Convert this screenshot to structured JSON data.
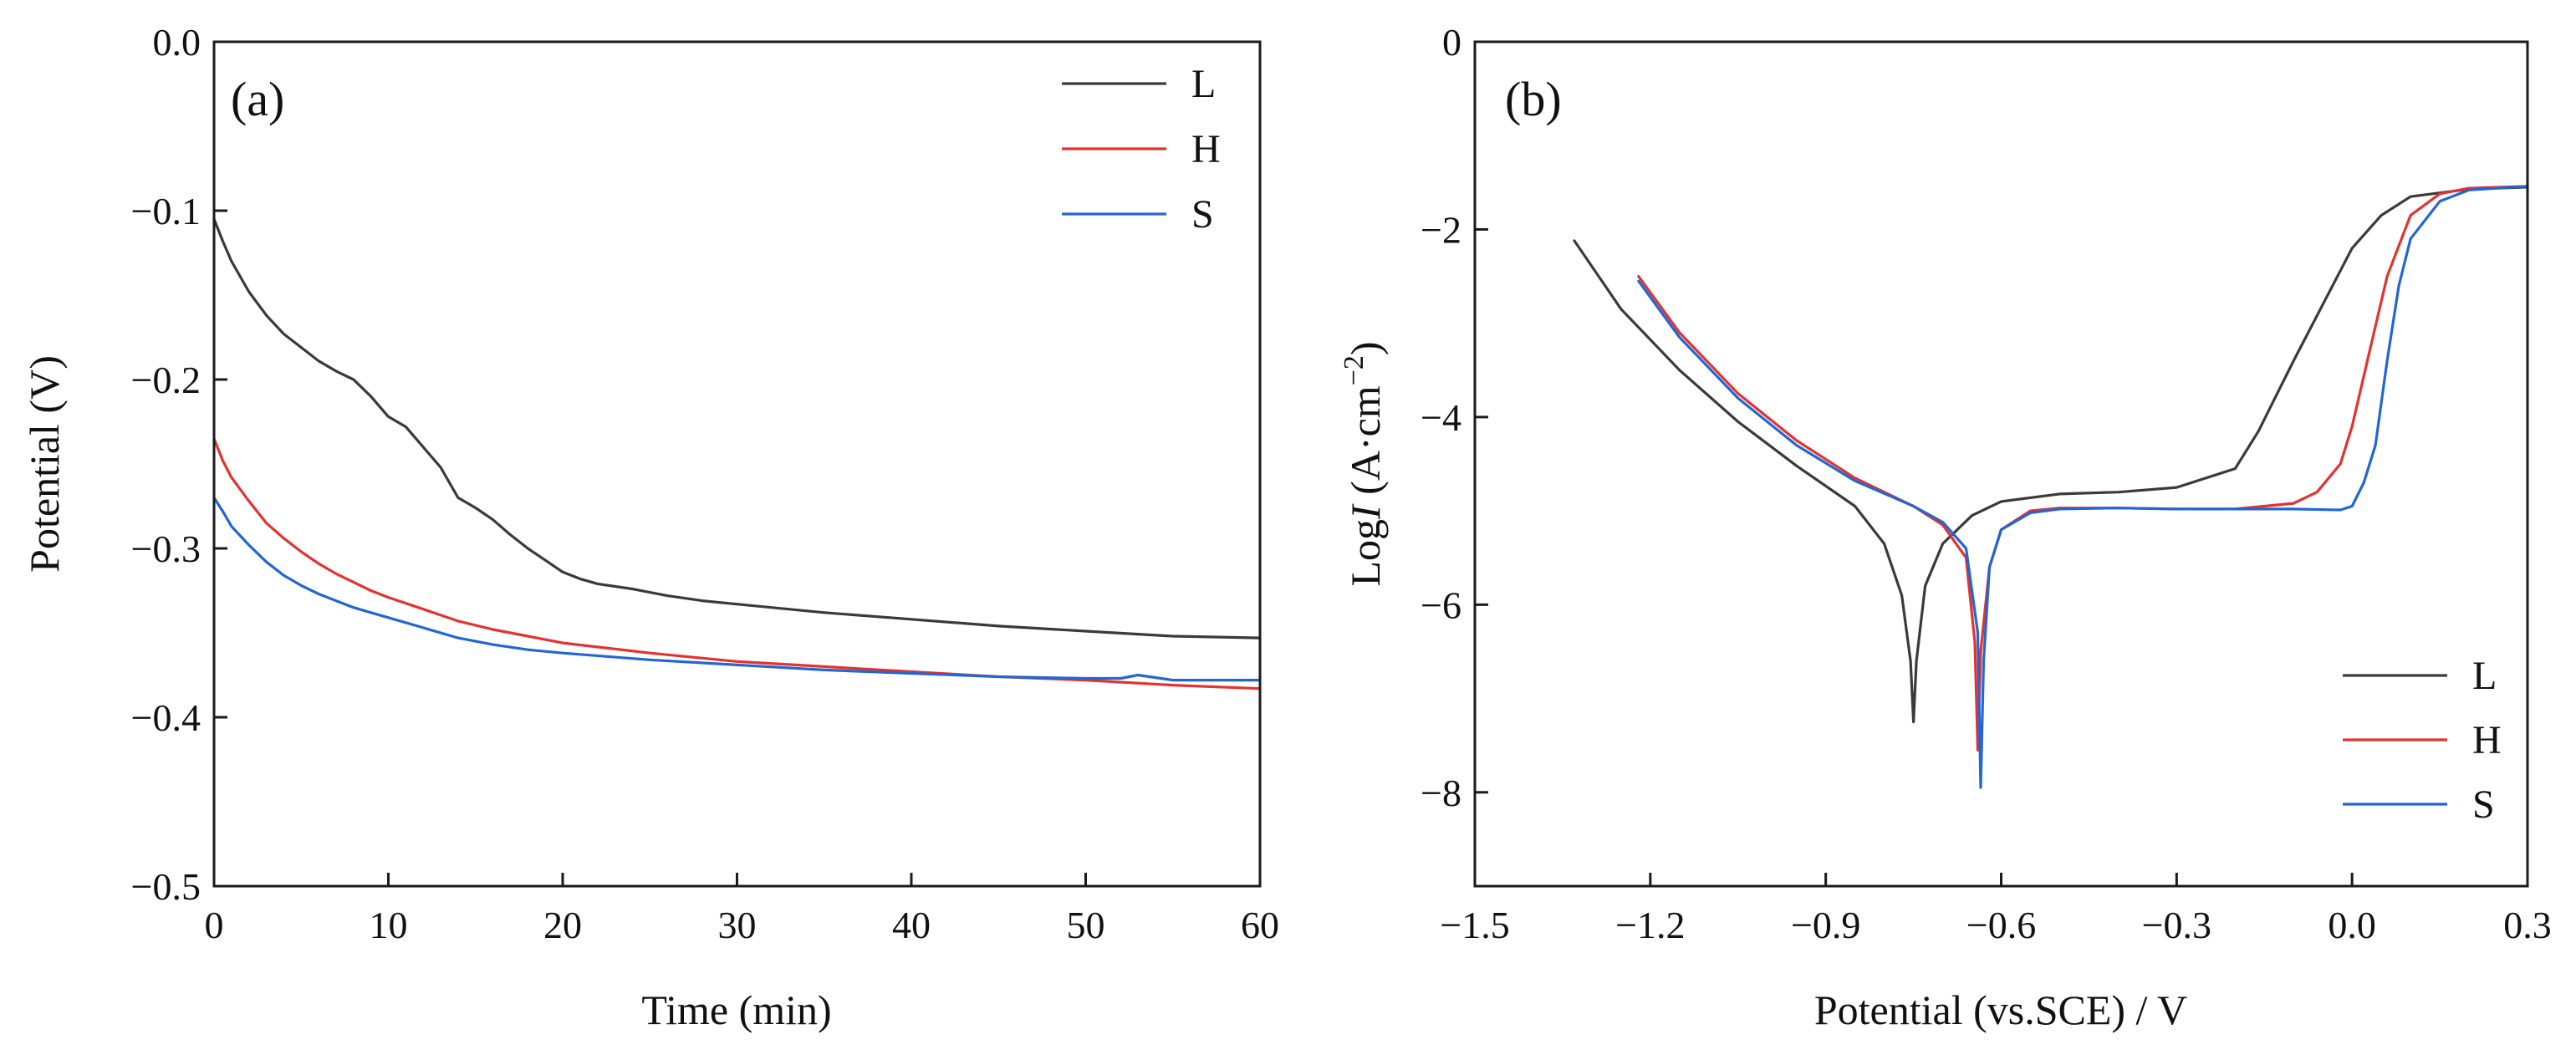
{
  "colors": {
    "L": "#3a3a3a",
    "H": "#e3322f",
    "S": "#2166d4"
  },
  "chart_data": [
    {
      "type": "line",
      "panel_label": "(a)",
      "xlabel": "Time (min)",
      "ylabel": "Potential (V)",
      "xlim": [
        0,
        60
      ],
      "ylim": [
        -0.5,
        0.0
      ],
      "xticks": [
        0,
        10,
        20,
        30,
        40,
        50,
        60
      ],
      "xtick_labels": [
        "0",
        "10",
        "20",
        "30",
        "40",
        "50",
        "60"
      ],
      "yticks": [
        0.0,
        -0.1,
        -0.2,
        -0.3,
        -0.4,
        -0.5
      ],
      "ytick_labels": [
        "0.0",
        "−0.1",
        "−0.2",
        "−0.3",
        "−0.4",
        "−0.5"
      ],
      "grid": false,
      "legend_position": "top-right",
      "series": [
        {
          "name": "L",
          "color": "#3a3a3a",
          "x": [
            0,
            0.5,
            1,
            2,
            3,
            4,
            5,
            6,
            7,
            8,
            9,
            10,
            11,
            12,
            13,
            14,
            15,
            16,
            17,
            18,
            19,
            20,
            21,
            22,
            24,
            26,
            28,
            30,
            35,
            40,
            45,
            50,
            55,
            60
          ],
          "y": [
            -0.105,
            -0.118,
            -0.13,
            -0.148,
            -0.162,
            -0.173,
            -0.181,
            -0.189,
            -0.195,
            -0.2,
            -0.21,
            -0.222,
            -0.228,
            -0.24,
            -0.252,
            -0.27,
            -0.276,
            -0.283,
            -0.292,
            -0.3,
            -0.307,
            -0.314,
            -0.318,
            -0.321,
            -0.324,
            -0.328,
            -0.331,
            -0.333,
            -0.338,
            -0.342,
            -0.346,
            -0.349,
            -0.352,
            -0.353
          ]
        },
        {
          "name": "H",
          "color": "#e3322f",
          "x": [
            0,
            0.5,
            1,
            2,
            3,
            4,
            5,
            6,
            7,
            8,
            9,
            10,
            12,
            14,
            16,
            18,
            20,
            25,
            30,
            35,
            40,
            45,
            50,
            55,
            60
          ],
          "y": [
            -0.235,
            -0.248,
            -0.258,
            -0.272,
            -0.285,
            -0.294,
            -0.302,
            -0.309,
            -0.315,
            -0.32,
            -0.325,
            -0.329,
            -0.336,
            -0.343,
            -0.348,
            -0.352,
            -0.356,
            -0.362,
            -0.367,
            -0.37,
            -0.373,
            -0.376,
            -0.378,
            -0.381,
            -0.383
          ]
        },
        {
          "name": "S",
          "color": "#2166d4",
          "x": [
            0,
            0.5,
            1,
            2,
            3,
            4,
            5,
            6,
            7,
            8,
            9,
            10,
            12,
            14,
            16,
            18,
            20,
            25,
            30,
            35,
            40,
            45,
            50,
            52,
            53,
            55,
            60
          ],
          "y": [
            -0.27,
            -0.278,
            -0.287,
            -0.298,
            -0.308,
            -0.316,
            -0.322,
            -0.327,
            -0.331,
            -0.335,
            -0.338,
            -0.341,
            -0.347,
            -0.353,
            -0.357,
            -0.36,
            -0.362,
            -0.366,
            -0.369,
            -0.372,
            -0.374,
            -0.376,
            -0.377,
            -0.377,
            -0.375,
            -0.378,
            -0.378
          ]
        }
      ]
    },
    {
      "type": "line",
      "panel_label": "(b)",
      "xlabel": "Potential (vs.SCE) / V",
      "ylabel_parts": [
        "Log",
        "I",
        " (A·cm",
        "−2",
        ")"
      ],
      "xlim": [
        -1.5,
        0.3
      ],
      "ylim": [
        -9,
        0
      ],
      "xticks": [
        -1.5,
        -1.2,
        -0.9,
        -0.6,
        -0.3,
        0.0,
        0.3
      ],
      "xtick_labels": [
        "−1.5",
        "−1.2",
        "−0.9",
        "−0.6",
        "−0.3",
        "0.0",
        "0.3"
      ],
      "yticks": [
        0,
        -2,
        -4,
        -6,
        -8
      ],
      "ytick_labels": [
        "0",
        "−2",
        "−4",
        "−6",
        "−8"
      ],
      "grid": false,
      "legend_position": "bottom-right",
      "series": [
        {
          "name": "L",
          "color": "#3a3a3a",
          "x": [
            -1.33,
            -1.25,
            -1.15,
            -1.05,
            -0.95,
            -0.85,
            -0.8,
            -0.77,
            -0.755,
            -0.75,
            -0.745,
            -0.73,
            -0.7,
            -0.65,
            -0.6,
            -0.5,
            -0.4,
            -0.3,
            -0.2,
            -0.16,
            -0.14,
            -0.1,
            -0.05,
            0.0,
            0.05,
            0.1,
            0.2,
            0.3
          ],
          "y": [
            -2.12,
            -2.85,
            -3.5,
            -4.05,
            -4.52,
            -4.95,
            -5.35,
            -5.9,
            -6.6,
            -7.25,
            -6.6,
            -5.8,
            -5.35,
            -5.05,
            -4.9,
            -4.82,
            -4.8,
            -4.75,
            -4.55,
            -4.15,
            -3.9,
            -3.4,
            -2.8,
            -2.2,
            -1.85,
            -1.65,
            -1.57,
            -1.55
          ]
        },
        {
          "name": "H",
          "color": "#e3322f",
          "x": [
            -1.22,
            -1.15,
            -1.05,
            -0.95,
            -0.85,
            -0.75,
            -0.7,
            -0.66,
            -0.645,
            -0.64,
            -0.635,
            -0.62,
            -0.6,
            -0.55,
            -0.5,
            -0.4,
            -0.3,
            -0.2,
            -0.1,
            -0.06,
            -0.02,
            0.0,
            0.03,
            0.06,
            0.1,
            0.15,
            0.2,
            0.3
          ],
          "y": [
            -2.5,
            -3.1,
            -3.75,
            -4.25,
            -4.65,
            -4.95,
            -5.15,
            -5.5,
            -6.4,
            -7.55,
            -6.5,
            -5.6,
            -5.2,
            -5.0,
            -4.97,
            -4.97,
            -4.98,
            -4.98,
            -4.92,
            -4.8,
            -4.5,
            -4.1,
            -3.3,
            -2.5,
            -1.85,
            -1.62,
            -1.56,
            -1.54
          ]
        },
        {
          "name": "S",
          "color": "#2166d4",
          "x": [
            -1.22,
            -1.15,
            -1.05,
            -0.95,
            -0.85,
            -0.75,
            -0.7,
            -0.66,
            -0.64,
            -0.635,
            -0.63,
            -0.62,
            -0.6,
            -0.55,
            -0.5,
            -0.4,
            -0.3,
            -0.2,
            -0.1,
            -0.02,
            0.0,
            0.02,
            0.04,
            0.06,
            0.08,
            0.1,
            0.15,
            0.2,
            0.3
          ],
          "y": [
            -2.55,
            -3.15,
            -3.8,
            -4.3,
            -4.68,
            -4.95,
            -5.12,
            -5.4,
            -6.3,
            -7.95,
            -6.6,
            -5.6,
            -5.2,
            -5.02,
            -4.98,
            -4.97,
            -4.98,
            -4.98,
            -4.98,
            -4.99,
            -4.95,
            -4.7,
            -4.3,
            -3.4,
            -2.6,
            -2.1,
            -1.7,
            -1.58,
            -1.54
          ]
        }
      ]
    }
  ]
}
